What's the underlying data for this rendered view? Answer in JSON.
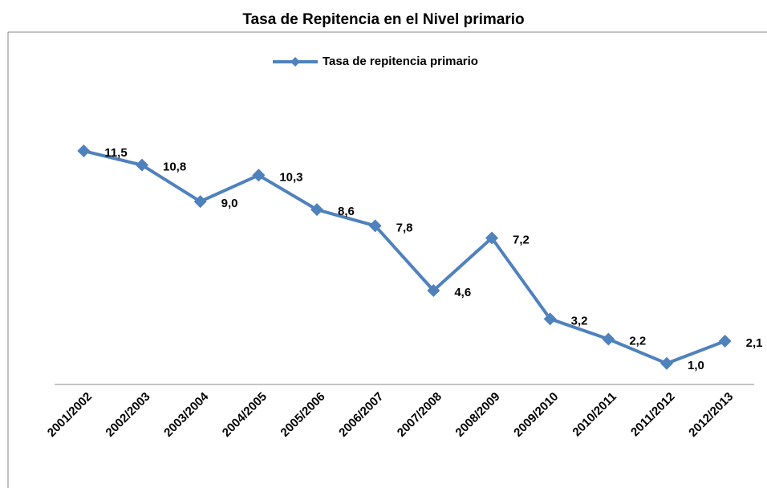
{
  "chart_data": {
    "type": "line",
    "title": "Tasa de Repitencia en el Nivel primario",
    "categories": [
      "2001/2002",
      "2002/2003",
      "2003/2004",
      "2004/2005",
      "2005/2006",
      "2006/2007",
      "2007/2008",
      "2008/2009",
      "2009/2010",
      "2010/2011",
      "2011/2012",
      "2012/2013"
    ],
    "series": [
      {
        "name": "Tasa de repitencia primario",
        "color": "#4f81bd",
        "values": [
          11.5,
          10.8,
          9.0,
          10.3,
          8.6,
          7.8,
          4.6,
          7.2,
          3.2,
          2.2,
          1.0,
          2.1
        ],
        "value_labels": [
          "11,5",
          "10,8",
          "9,0",
          "10,3",
          "8,6",
          "7,8",
          "4,6",
          "7,2",
          "3,2",
          "2,2",
          "1,0",
          "2,1"
        ]
      }
    ],
    "ylim": [
      0,
      14
    ],
    "legend": "top"
  }
}
